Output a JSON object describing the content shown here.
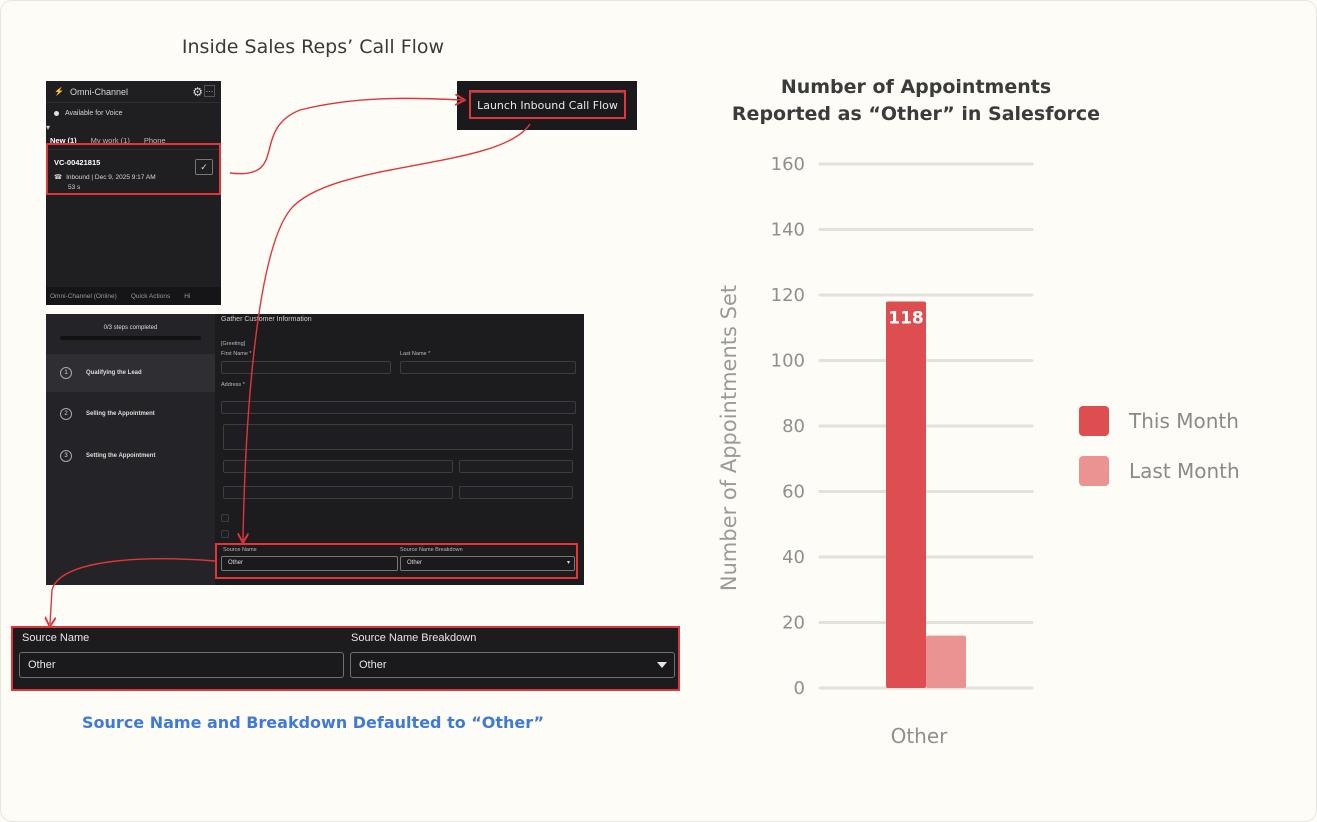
{
  "left": {
    "title": "Inside Sales Reps’ Call Flow",
    "caption": "Source Name and Breakdown Defaulted to “Other”"
  },
  "omni": {
    "title": "Omni-Channel",
    "status": "Available for Voice",
    "tabs": [
      "New (1)",
      "My work (1)",
      "Phone"
    ],
    "work_id": "VC-00421815",
    "work_meta": "Inbound | Dec 9, 2025 9:17 AM",
    "work_duration": "53 s",
    "footer_items": [
      "Omni-Channel (Online)",
      "Quick Actions",
      "Hi"
    ],
    "gear_icon": "gear-icon",
    "phone_icon": "phone-icon"
  },
  "launch": {
    "label": "Launch Inbound Call Flow"
  },
  "flow": {
    "progress_label": "0/3 steps completed",
    "steps": [
      {
        "num": "1",
        "label": "Qualifying the Lead"
      },
      {
        "num": "2",
        "label": "Selling the Appointment"
      },
      {
        "num": "3",
        "label": "Setting the Appointment"
      }
    ],
    "section_title": "Gather Customer Information",
    "greeting": "[Greeting]",
    "first_name": "First Name *",
    "last_name": "Last Name *",
    "address": "Address *",
    "source_name_label": "Source Name",
    "source_breakdown_label": "Source Name Breakdown",
    "source_name_value": "Other",
    "source_breakdown_value": "Other"
  },
  "zoom": {
    "source_name_label": "Source Name",
    "source_breakdown_label": "Source Name Breakdown",
    "source_name_value": "Other",
    "source_breakdown_value": "Other"
  },
  "colors": {
    "highlight": "#e0363b",
    "this_month": "#de4d4f",
    "last_month": "#eb9392"
  },
  "chart_data": {
    "type": "bar",
    "title_line1": "Number of Appointments",
    "title_line2": "Reported as “Other” in Salesforce",
    "ylabel": "Number of Appointments Set",
    "xlabel": "",
    "categories": [
      "Other"
    ],
    "series": [
      {
        "name": "This Month",
        "values": [
          118
        ],
        "label": "118"
      },
      {
        "name": "Last Month",
        "values": [
          16
        ]
      }
    ],
    "ylim": [
      0,
      160
    ],
    "yticks": [
      "0",
      "20",
      "40",
      "60",
      "80",
      "100",
      "120",
      "140",
      "160"
    ],
    "grid": true,
    "legend": "right"
  }
}
